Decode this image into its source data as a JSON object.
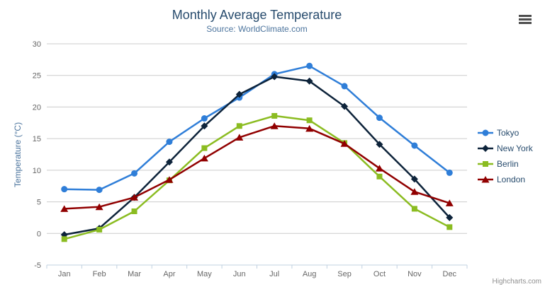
{
  "credits": "Highcharts.com",
  "colors": {
    "background": "#FFFFFF",
    "grid": "#CCCCCC",
    "axis_line": "#C0D0E0",
    "tick": "#C0D0E0",
    "axis_label": "#666666",
    "title": "#274B6D",
    "subtitle": "#4D759E",
    "y_title": "#4D759E",
    "legend_text": "#274B6D",
    "credits_text": "#909090",
    "menu_icon": "#4D4D4D"
  },
  "chart_data": {
    "type": "line",
    "title": "Monthly Average Temperature",
    "subtitle": "Source: WorldClimate.com",
    "categories": [
      "Jan",
      "Feb",
      "Mar",
      "Apr",
      "May",
      "Jun",
      "Jul",
      "Aug",
      "Sep",
      "Oct",
      "Nov",
      "Dec"
    ],
    "xlabel": "",
    "ylabel": "Temperature (°C)",
    "ylim": [
      -5,
      30
    ],
    "yticks": [
      -5,
      0,
      5,
      10,
      15,
      20,
      25,
      30
    ],
    "grid": true,
    "legend_position": "right",
    "series": [
      {
        "name": "Tokyo",
        "color": "#2F7ED8",
        "marker": "circle",
        "values": [
          7.0,
          6.9,
          9.5,
          14.5,
          18.2,
          21.5,
          25.2,
          26.5,
          23.3,
          18.3,
          13.9,
          9.6
        ]
      },
      {
        "name": "New York",
        "color": "#0D233A",
        "marker": "diamond",
        "values": [
          -0.2,
          0.8,
          5.7,
          11.3,
          17.0,
          22.0,
          24.8,
          24.1,
          20.1,
          14.1,
          8.6,
          2.5
        ]
      },
      {
        "name": "Berlin",
        "color": "#8BBC21",
        "marker": "square",
        "values": [
          -0.9,
          0.6,
          3.5,
          8.4,
          13.5,
          17.0,
          18.6,
          17.9,
          14.3,
          9.0,
          3.9,
          1.0
        ]
      },
      {
        "name": "London",
        "color": "#910000",
        "marker": "triangle",
        "values": [
          3.9,
          4.2,
          5.7,
          8.5,
          11.9,
          15.2,
          17.0,
          16.6,
          14.2,
          10.3,
          6.6,
          4.8
        ]
      }
    ]
  }
}
